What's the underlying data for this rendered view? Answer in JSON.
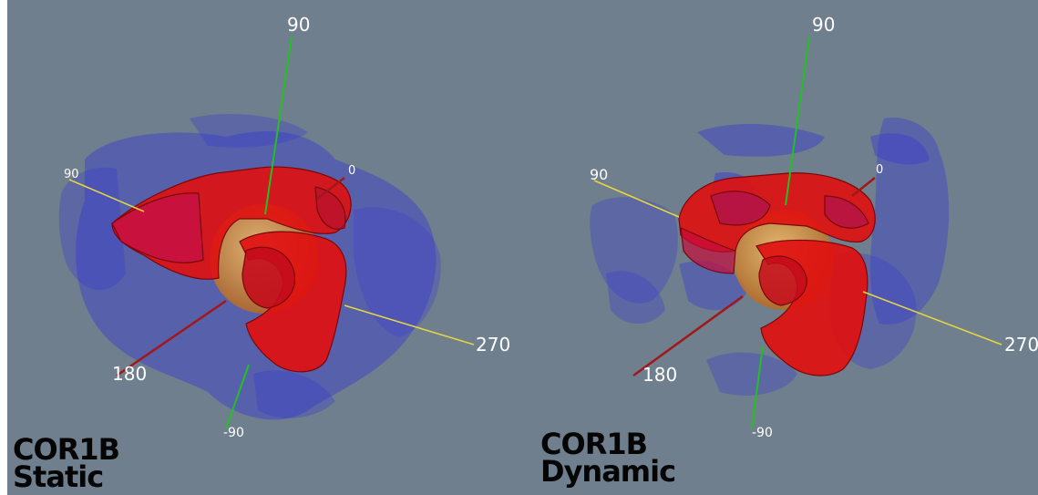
{
  "panels": [
    {
      "caption_line1": "COR1B",
      "caption_line2": "Static",
      "axis_labels": {
        "top": "90",
        "upper_left": "90",
        "upper_right": "0",
        "lower_left": "180",
        "right": "270",
        "bottom": "-90"
      }
    },
    {
      "caption_line1": "COR1B",
      "caption_line2": "Dynamic",
      "axis_labels": {
        "top": "90",
        "upper_left": "90",
        "upper_right": "0",
        "lower_left": "180",
        "right": "270",
        "bottom": "-90"
      }
    }
  ],
  "colors": {
    "background": "#6f7f8e",
    "blue_isosurface": "#3a3ccf",
    "red_isosurface": "#e01010",
    "sun_sphere": "#e89a3a",
    "axis_green": "#22c022",
    "axis_red": "#a01818",
    "axis_yellow": "#e6d640"
  }
}
